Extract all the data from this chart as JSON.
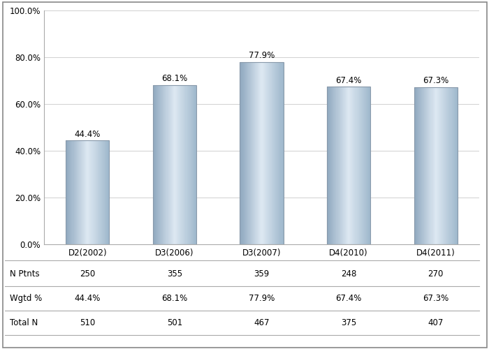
{
  "categories": [
    "D2(2002)",
    "D3(2006)",
    "D3(2007)",
    "D4(2010)",
    "D4(2011)"
  ],
  "values": [
    44.4,
    68.1,
    77.9,
    67.4,
    67.3
  ],
  "n_ptnts": [
    250,
    355,
    359,
    248,
    270
  ],
  "wgtd_pct": [
    "44.4%",
    "68.1%",
    "77.9%",
    "67.4%",
    "67.3%"
  ],
  "total_n": [
    510,
    501,
    467,
    375,
    407
  ],
  "ylim": [
    0,
    100
  ],
  "yticks": [
    0,
    20,
    40,
    60,
    80,
    100
  ],
  "ytick_labels": [
    "0.0%",
    "20.0%",
    "40.0%",
    "60.0%",
    "80.0%",
    "100.0%"
  ],
  "label_row1": "N Ptnts",
  "label_row2": "Wgtd %",
  "label_row3": "Total N",
  "background_color": "#ffffff",
  "grid_color": "#d0d0d0",
  "bar_edge_color": "#8899aa",
  "bar_width": 0.5,
  "value_label_fontsize": 8.5,
  "tick_fontsize": 8.5,
  "table_fontsize": 8.5,
  "bar_gradient_left": "#8fa8bf",
  "bar_gradient_mid": "#dde8f2",
  "bar_gradient_right": "#9fb8cc",
  "bar_base_color": "#b8ccd8"
}
